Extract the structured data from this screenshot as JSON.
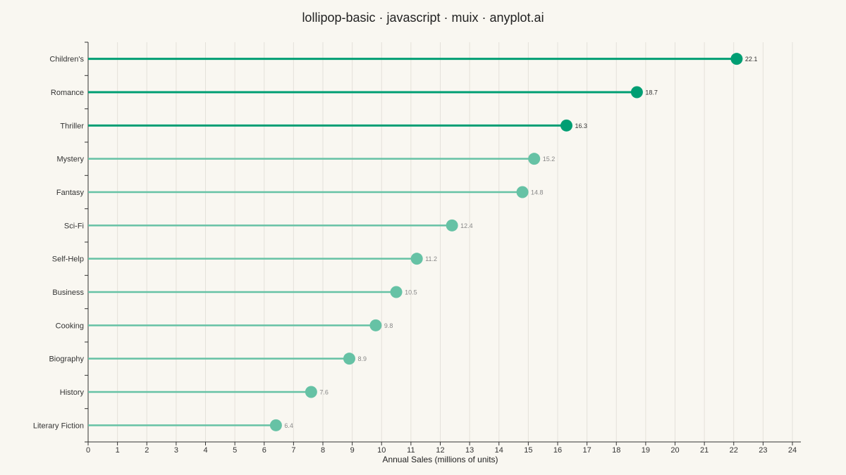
{
  "chart_data": {
    "type": "lollipop",
    "title": "lollipop-basic · javascript · muix · anyplot.ai",
    "xlabel": "Annual Sales (millions of units)",
    "ylabel": "",
    "xlim": [
      0,
      24
    ],
    "xticks": [
      0,
      1,
      2,
      3,
      4,
      5,
      6,
      7,
      8,
      9,
      10,
      11,
      12,
      13,
      14,
      15,
      16,
      17,
      18,
      19,
      20,
      21,
      22,
      23,
      24
    ],
    "grid": "vertical",
    "categories": [
      "Children's",
      "Romance",
      "Thriller",
      "Mystery",
      "Fantasy",
      "Sci-Fi",
      "Self-Help",
      "Business",
      "Cooking",
      "Biography",
      "History",
      "Literary Fiction"
    ],
    "values": [
      22.1,
      18.7,
      16.3,
      15.2,
      14.8,
      12.4,
      11.2,
      10.5,
      9.8,
      8.9,
      7.6,
      6.4
    ],
    "highlight_top_n": 3,
    "colors": {
      "highlight": "#009E73",
      "normal": "#66C2A5",
      "highlight_label": "#333333",
      "normal_label": "#888888",
      "grid": "#E4E1DA",
      "axis": "#333333"
    }
  }
}
